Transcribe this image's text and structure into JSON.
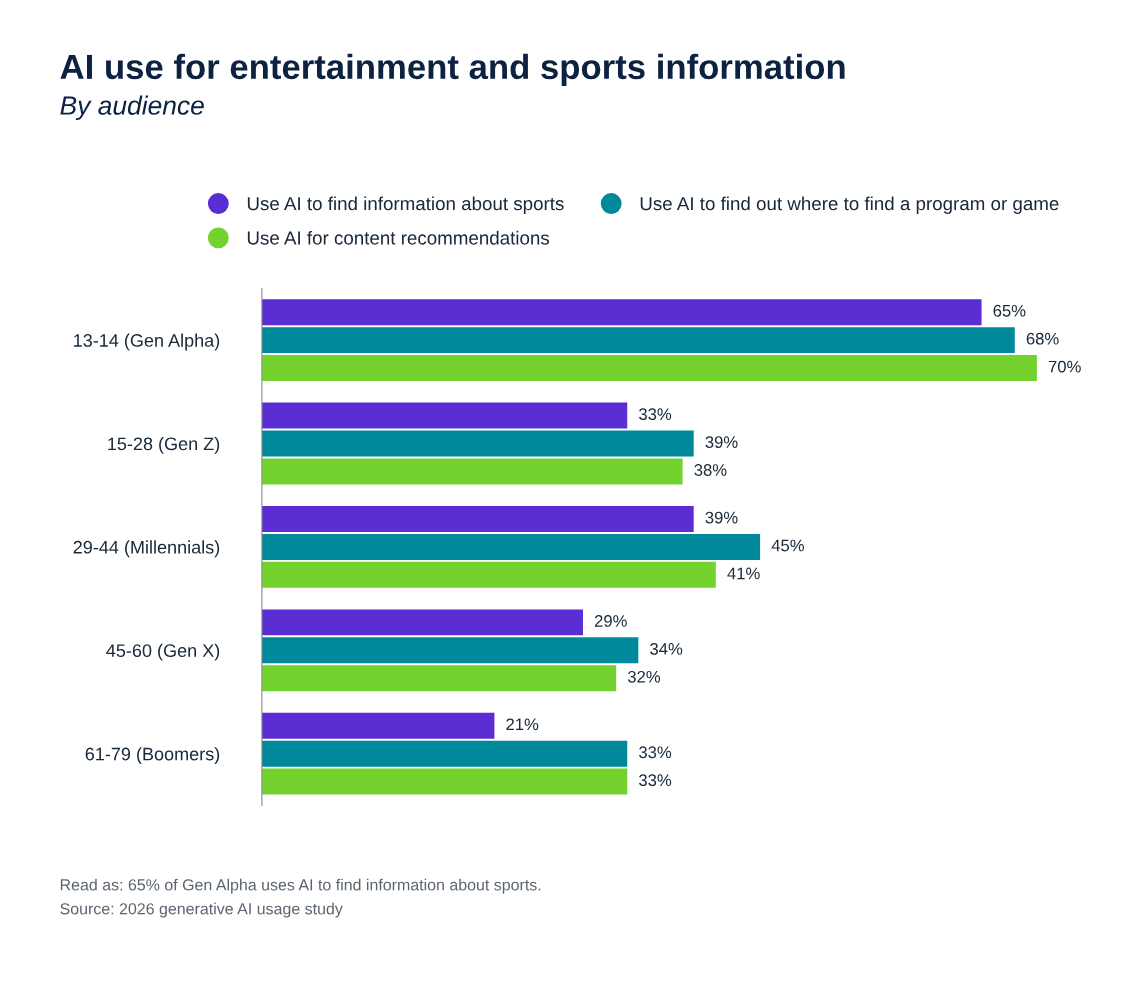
{
  "chart_data": {
    "type": "bar",
    "orientation": "horizontal",
    "title": "AI use for entertainment and sports information",
    "subtitle": "By audience",
    "categories": [
      "13-14 (Gen Alpha)",
      "15-28 (Gen Z)",
      "29-44 (Millennials)",
      "45-60 (Gen X)",
      "61-79 (Boomers)"
    ],
    "series": [
      {
        "name": "Use AI to find information about sports",
        "color": "#5a2ed3",
        "values": [
          65,
          33,
          39,
          29,
          21
        ],
        "value_labels": [
          "65%",
          "33%",
          "39%",
          "29%",
          "21%"
        ]
      },
      {
        "name": "Use AI to find out where to find a program or game",
        "color": "#00899a",
        "values": [
          68,
          39,
          45,
          34,
          33
        ],
        "value_labels": [
          "68%",
          "39%",
          "45%",
          "34%",
          "33%"
        ]
      },
      {
        "name": "Use AI for content recommendations",
        "color": "#74d22f",
        "values": [
          70,
          38,
          41,
          32,
          33
        ],
        "value_labels": [
          "70%",
          "38%",
          "41%",
          "32%",
          "33%"
        ]
      }
    ],
    "tick_labels": "y",
    "grid": false,
    "legend": "top",
    "annotations": [
      "Read as: 65% of Gen Alpha uses AI to find information about sports.",
      "Source: 2026 generative AI usage study"
    ]
  }
}
